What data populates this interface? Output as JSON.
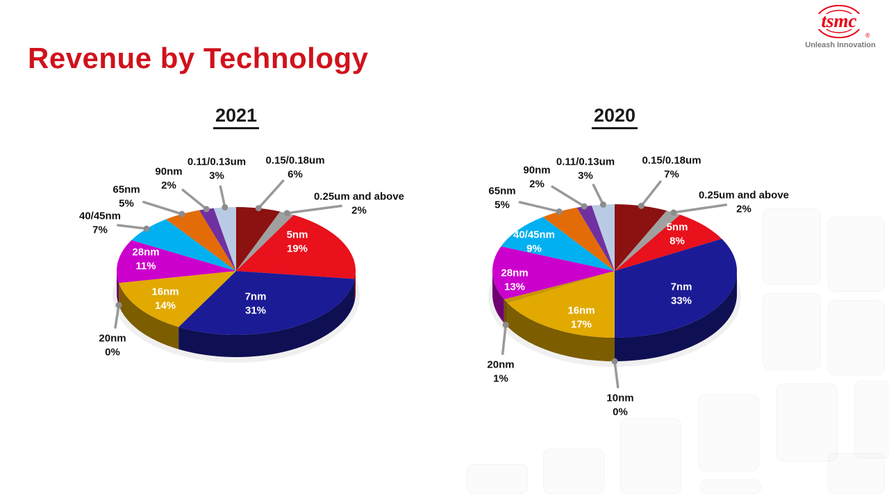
{
  "page": {
    "title": "Revenue by Technology"
  },
  "logo": {
    "brand": "tsmc",
    "registered": "®",
    "tagline": "Unleash Innovation"
  },
  "style": {
    "accent_red": "#d0121c",
    "leader_color": "#999999"
  },
  "chart_data": [
    {
      "type": "pie",
      "title": "2021",
      "unit": "%",
      "slices": [
        {
          "label": "0.15/0.18um",
          "value": 6,
          "color": "#8c1111"
        },
        {
          "label": "0.25um and above",
          "value": 2,
          "color": "#a0a0a0"
        },
        {
          "label": "5nm",
          "value": 19,
          "color": "#e8111c"
        },
        {
          "label": "7nm",
          "value": 31,
          "color": "#1b1b96"
        },
        {
          "label": "16nm",
          "value": 14,
          "color": "#e2a900"
        },
        {
          "label": "20nm",
          "value": 0,
          "color": "#c79500"
        },
        {
          "label": "28nm",
          "value": 11,
          "color": "#cc00cc"
        },
        {
          "label": "40/45nm",
          "value": 7,
          "color": "#00b0f0"
        },
        {
          "label": "65nm",
          "value": 5,
          "color": "#e36c09"
        },
        {
          "label": "90nm",
          "value": 2,
          "color": "#7030a0"
        },
        {
          "label": "0.11/0.13um",
          "value": 3,
          "color": "#b9cbe4"
        }
      ]
    },
    {
      "type": "pie",
      "title": "2020",
      "unit": "%",
      "slices": [
        {
          "label": "0.15/0.18um",
          "value": 7,
          "color": "#8c1111"
        },
        {
          "label": "0.25um and above",
          "value": 2,
          "color": "#a0a0a0"
        },
        {
          "label": "5nm",
          "value": 8,
          "color": "#e8111c"
        },
        {
          "label": "7nm",
          "value": 33,
          "color": "#1b1b96"
        },
        {
          "label": "10nm",
          "value": 0,
          "color": "#3a3ac0"
        },
        {
          "label": "16nm",
          "value": 17,
          "color": "#e2a900"
        },
        {
          "label": "20nm",
          "value": 1,
          "color": "#c79500"
        },
        {
          "label": "28nm",
          "value": 13,
          "color": "#cc00cc"
        },
        {
          "label": "40/45nm",
          "value": 9,
          "color": "#00b0f0"
        },
        {
          "label": "65nm",
          "value": 5,
          "color": "#e36c09"
        },
        {
          "label": "90nm",
          "value": 2,
          "color": "#7030a0"
        },
        {
          "label": "0.11/0.13um",
          "value": 3,
          "color": "#b9cbe4"
        }
      ]
    }
  ]
}
